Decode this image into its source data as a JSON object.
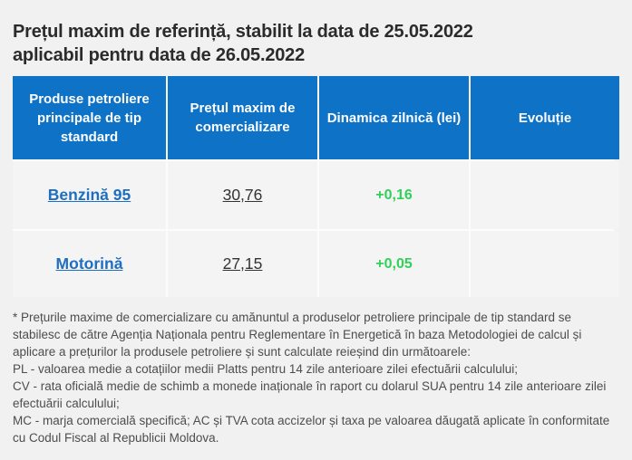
{
  "page": {
    "title_line1": "Prețul maxim de referință, stabilit la data de 25.05.2022",
    "title_line2": "aplicabil pentru data de 26.05.2022"
  },
  "table": {
    "headers": [
      "Produse petroliere principale de tip standard",
      "Prețul maxim de comercializare",
      "Dinamica zilnică (lei)",
      "Evoluție"
    ],
    "rows": [
      {
        "product": "Benzină 95",
        "price": "30,76",
        "dynamic": "+0,16",
        "evolution": ""
      },
      {
        "product": "Motorină",
        "price": "27,15",
        "dynamic": "+0,05",
        "evolution": ""
      }
    ]
  },
  "footnote": {
    "paragraphs": [
      "* Prețurile maxime de comercializare cu amănuntul a produselor petroliere principale de tip standard se stabilesc de către Agenția Naționala pentru Reglementare în Energetică în baza Metodologiei de calcul și aplicare a prețurilor la produsele petroliere și sunt calculate reieșind din următoarele:",
      "PL - valoarea medie a cotațiilor medii Platts pentru 14 zile anterioare zilei efectuării calculului;",
      "CV - rata oficială medie de schimb a monede inaționale în raport cu dolarul SUA pentru 14 zile anterioare zilei efectuării calculului;",
      "MC - marja comercială specifică; AC și TVA cota accizelor și taxa pe valoarea dăugată aplicate în conformitate cu Codul Fiscal al Republicii Moldova."
    ]
  },
  "colors": {
    "header_bg": "#0e72c6",
    "link": "#1e6fc0",
    "positive": "#30d158",
    "title_text": "#2b2b2b",
    "footnote_text": "#4d4d4d",
    "cell_bg": "#f4f4f4",
    "page_bg": "#f1f1f1"
  }
}
